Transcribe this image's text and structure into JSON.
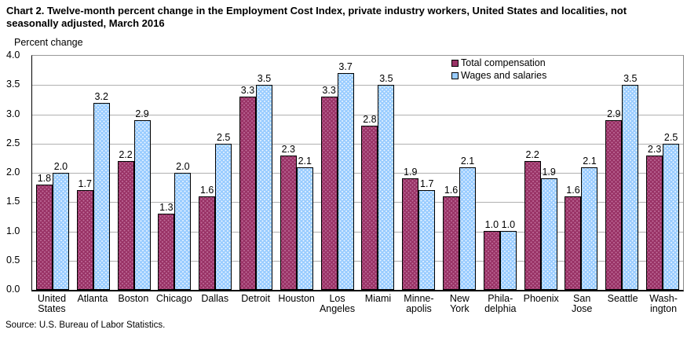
{
  "title": {
    "line1": "Chart 2. Twelve-month percent change in the Employment Cost Index, private industry workers, United States and localities, not",
    "line2": "seasonally adjusted, March 2016"
  },
  "y_axis_title": "Percent change",
  "source": "Source: U.S. Bureau of Labor Statistics.",
  "colors": {
    "total_compensation": "#993366",
    "wages_and_salaries": "#99CCFF",
    "gridline": "#b0b0b0",
    "bar_outline": "#000000"
  },
  "chart_data": {
    "type": "bar",
    "title": "Chart 2. Twelve-month percent change in the Employment Cost Index, private industry workers, United States and localities, not seasonally adjusted, March 2016",
    "ylabel": "Percent change",
    "ylim": [
      0,
      4.0
    ],
    "ytick_step": 0.5,
    "yticks": [
      "4.0",
      "3.5",
      "3.0",
      "2.5",
      "2.0",
      "1.5",
      "1.0",
      "0.5",
      "0.0"
    ],
    "grid": true,
    "legend_position": "top-right",
    "value_labels": true,
    "categories": [
      "United States",
      "Atlanta",
      "Boston",
      "Chicago",
      "Dallas",
      "Detroit",
      "Houston",
      "Los Angeles",
      "Miami",
      "Minneapolis",
      "New York",
      "Philadelphia",
      "Phoenix",
      "San Jose",
      "Seattle",
      "Washington"
    ],
    "category_label_lines": [
      [
        "United",
        "States"
      ],
      [
        "Atlanta"
      ],
      [
        "Boston"
      ],
      [
        "Chicago"
      ],
      [
        "Dallas"
      ],
      [
        "Detroit"
      ],
      [
        "Houston"
      ],
      [
        "Los",
        "Angeles"
      ],
      [
        "Miami"
      ],
      [
        "Minne-",
        "apolis"
      ],
      [
        "New",
        "York"
      ],
      [
        "Phila-",
        "delphia"
      ],
      [
        "Phoenix"
      ],
      [
        "San",
        "Jose"
      ],
      [
        "Seattle"
      ],
      [
        "Wash-",
        "ington"
      ]
    ],
    "series": [
      {
        "name": "Total compensation",
        "color": "#993366",
        "values": [
          1.8,
          1.7,
          2.2,
          1.3,
          1.6,
          3.3,
          2.3,
          3.3,
          2.8,
          1.9,
          1.6,
          1.0,
          2.2,
          1.6,
          2.9,
          2.3
        ]
      },
      {
        "name": "Wages and salaries",
        "color": "#99CCFF",
        "values": [
          2.0,
          3.2,
          2.9,
          2.0,
          2.5,
          3.5,
          2.1,
          3.7,
          3.5,
          1.7,
          2.1,
          1.0,
          1.9,
          2.1,
          3.5,
          2.5
        ]
      }
    ]
  }
}
